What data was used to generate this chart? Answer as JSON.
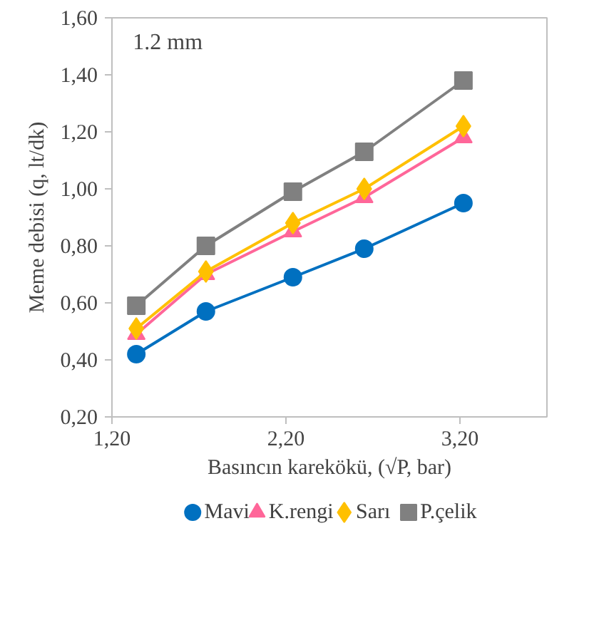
{
  "chart_data": {
    "type": "line",
    "xlabel": "Basıncın karekökü, (√P, bar)",
    "ylabel": "Meme debisi (q, lt/dk)",
    "annotations": [
      "1.2 mm"
    ],
    "x": [
      1.34,
      1.74,
      2.24,
      2.65,
      3.22
    ],
    "series": [
      {
        "name": "Mavi",
        "color": "#0070c0",
        "marker": "circle",
        "values": [
          0.42,
          0.57,
          0.69,
          0.79,
          0.95
        ]
      },
      {
        "name": "K.rengi",
        "color": "#ff6699",
        "marker": "triangle",
        "values": [
          0.49,
          0.7,
          0.85,
          0.97,
          1.18
        ]
      },
      {
        "name": "Sarı",
        "color": "#ffc000",
        "marker": "diamond",
        "values": [
          0.51,
          0.71,
          0.88,
          1.0,
          1.22
        ]
      },
      {
        "name": "P.çelik",
        "color": "#808080",
        "marker": "square",
        "values": [
          0.59,
          0.8,
          0.99,
          1.13,
          1.38
        ]
      }
    ],
    "xlim": [
      1.2,
      3.7
    ],
    "xticks": [
      {
        "value": 1.2,
        "label": "1,20"
      },
      {
        "value": 2.2,
        "label": "2,20"
      },
      {
        "value": 3.2,
        "label": "3,20"
      }
    ],
    "ylim": [
      0.2,
      1.6
    ],
    "yticks": [
      {
        "value": 0.2,
        "label": "0,20"
      },
      {
        "value": 0.4,
        "label": "0,40"
      },
      {
        "value": 0.6,
        "label": "0,60"
      },
      {
        "value": 0.8,
        "label": "0,80"
      },
      {
        "value": 1.0,
        "label": "1,00"
      },
      {
        "value": 1.2,
        "label": "1,20"
      },
      {
        "value": 1.4,
        "label": "1,40"
      },
      {
        "value": 1.6,
        "label": "1,60"
      }
    ],
    "grid": false,
    "legend": "bottom",
    "line_style": "solid"
  }
}
